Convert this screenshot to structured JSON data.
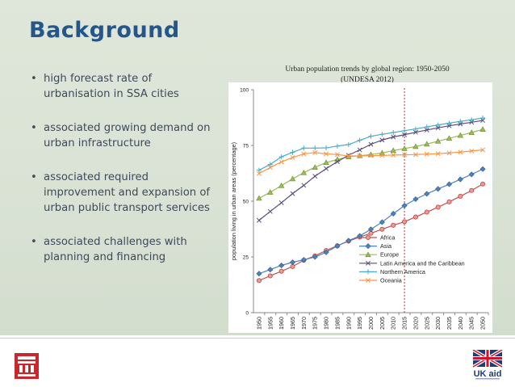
{
  "slide": {
    "title": "Background",
    "bullets": [
      "high forecast rate of urbanisation in SSA cities",
      "associated growing demand on urban infrastructure",
      "associated required improvement and expansion of urban public transport services",
      "associated challenges with planning and financing"
    ],
    "bullet_glyph": "•"
  },
  "footer": {
    "logo_text": "UK aid"
  },
  "chart_data": {
    "type": "line",
    "title": "Urban population trends by global region: 1950-2050",
    "subtitle": "(UNDESA 2012)",
    "xlabel": "",
    "ylabel": "population living in urban areas (percentage)",
    "ylim": [
      0,
      100
    ],
    "yticks": [
      0,
      25,
      50,
      75,
      100
    ],
    "x": [
      "1950",
      "1955",
      "1960",
      "1965",
      "1970",
      "1975",
      "1980",
      "1985",
      "1990",
      "1995",
      "2000",
      "2005",
      "2010",
      "2015",
      "2020",
      "2025",
      "2030",
      "2035",
      "2040",
      "2045",
      "2050"
    ],
    "reference_line_x": "2015",
    "grid": false,
    "legend_position": "bottom-right",
    "series": [
      {
        "name": "Africa",
        "color": "#c0504d",
        "marker": "circle",
        "values": [
          14.4,
          16.5,
          18.6,
          20.7,
          23.5,
          25.5,
          27.9,
          30.0,
          32.1,
          33.9,
          35.6,
          37.4,
          39.2,
          40.8,
          42.9,
          45.1,
          47.3,
          49.7,
          52.2,
          54.8,
          57.7
        ]
      },
      {
        "name": "Asia",
        "color": "#4f81bd",
        "marker": "diamond",
        "values": [
          17.5,
          19.3,
          21.2,
          22.6,
          23.7,
          25.0,
          27.1,
          29.9,
          32.3,
          34.4,
          37.4,
          40.6,
          44.4,
          48.0,
          50.9,
          53.3,
          55.5,
          57.6,
          59.8,
          62.0,
          64.4
        ]
      },
      {
        "name": "Europe",
        "color": "#9bbb59",
        "marker": "triangle",
        "values": [
          51.3,
          54.0,
          57.0,
          60.0,
          62.8,
          65.2,
          67.3,
          68.7,
          69.9,
          70.4,
          70.9,
          71.6,
          72.7,
          73.6,
          74.5,
          75.6,
          76.9,
          78.2,
          79.5,
          80.8,
          82.2
        ]
      },
      {
        "name": "Latin America and the Caribbean",
        "color": "#5a4b7a",
        "marker": "x",
        "values": [
          41.4,
          45.4,
          49.3,
          53.4,
          57.1,
          61.2,
          64.6,
          67.7,
          70.6,
          73.0,
          75.5,
          77.4,
          78.8,
          79.8,
          80.9,
          81.9,
          82.9,
          83.8,
          84.6,
          85.4,
          86.2
        ]
      },
      {
        "name": "Northern America",
        "color": "#4aacc6",
        "marker": "plus",
        "values": [
          63.9,
          66.5,
          69.9,
          71.9,
          73.8,
          73.8,
          73.9,
          74.7,
          75.4,
          77.3,
          79.1,
          80.0,
          80.8,
          81.6,
          82.4,
          83.3,
          84.2,
          85.0,
          85.8,
          86.5,
          87.3
        ]
      },
      {
        "name": "Oceania",
        "color": "#f79646",
        "marker": "x",
        "values": [
          62.4,
          65.1,
          67.6,
          69.6,
          71.2,
          71.8,
          71.2,
          70.9,
          70.3,
          70.3,
          70.4,
          70.5,
          70.7,
          70.8,
          70.9,
          71.1,
          71.3,
          71.6,
          72.0,
          72.5,
          73.0
        ]
      }
    ]
  }
}
